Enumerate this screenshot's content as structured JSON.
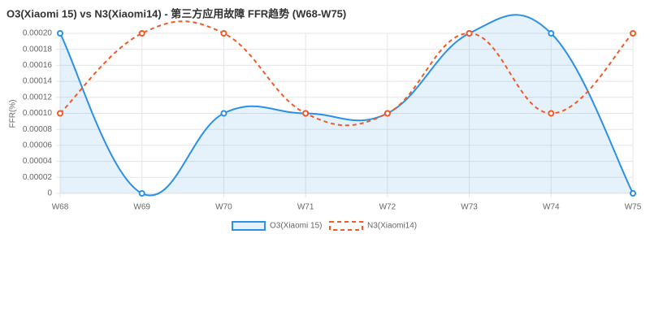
{
  "chart_data": {
    "type": "line",
    "title": "O3(Xiaomi 15) vs N3(Xiaomi14) - 第三方应用故障 FFR趋势 (W68-W75)",
    "y_label": "FFR(%)",
    "categories": [
      "W68",
      "W69",
      "W70",
      "W71",
      "W72",
      "W73",
      "W74",
      "W75"
    ],
    "series": [
      {
        "name": "O3(Xiaomi 15)",
        "color": "#2b90e6",
        "dashed": false,
        "fill": true,
        "values": [
          0.0002,
          0,
          0.0001,
          0.0001,
          0.0001,
          0.0002,
          0.0002,
          0
        ]
      },
      {
        "name": "N3(Xiaomi14)",
        "color": "#f05a28",
        "dashed": true,
        "fill": false,
        "values": [
          0.0001,
          0.0002,
          0.0002,
          0.0001,
          0.0001,
          0.0002,
          0.0001,
          0.0002
        ]
      }
    ],
    "ylim": [
      0,
      0.0002
    ],
    "yticks": [
      0,
      2e-05,
      4e-05,
      6e-05,
      8e-05,
      {
        "value": 0.0001,
        "label": "0.00010"
      },
      0.00012,
      0.00014,
      0.00016,
      0.00018,
      {
        "value": 0.0002,
        "label": "0.00020"
      }
    ],
    "grid": true
  }
}
